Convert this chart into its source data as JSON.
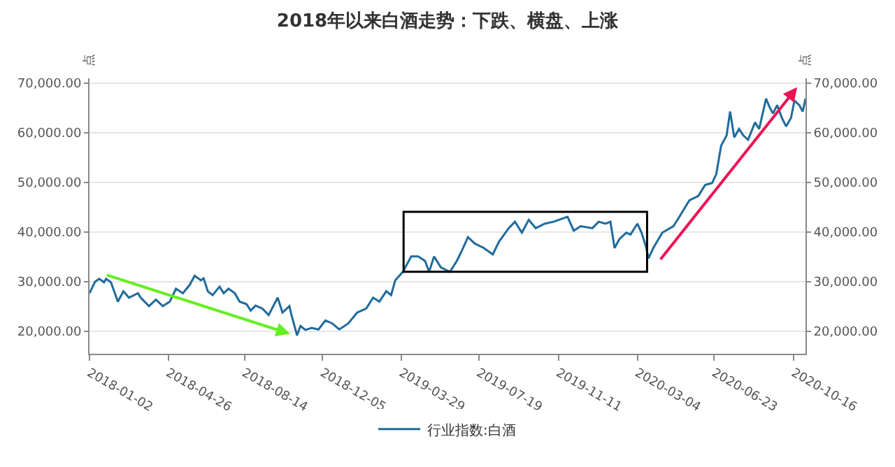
{
  "chart_data": {
    "type": "line",
    "title": "2018年以来白酒走势：下跌、横盘、上涨",
    "ylabel": "点",
    "y2label": "点",
    "x": [
      "2018-01-02",
      "2018-01-10",
      "2018-01-16",
      "2018-01-23",
      "2018-01-26",
      "2018-02-02",
      "2018-02-12",
      "2018-02-20",
      "2018-02-28",
      "2018-03-13",
      "2018-03-17",
      "2018-03-29",
      "2018-04-08",
      "2018-04-18",
      "2018-04-28",
      "2018-05-07",
      "2018-05-17",
      "2018-05-27",
      "2018-06-03",
      "2018-06-12",
      "2018-06-16",
      "2018-06-22",
      "2018-06-29",
      "2018-07-09",
      "2018-07-15",
      "2018-07-22",
      "2018-07-31",
      "2018-08-07",
      "2018-08-17",
      "2018-08-23",
      "2018-08-30",
      "2018-09-09",
      "2018-09-18",
      "2018-10-01",
      "2018-10-08",
      "2018-10-18",
      "2018-10-21",
      "2018-10-29",
      "2018-11-03",
      "2018-11-10",
      "2018-11-19",
      "2018-11-29",
      "2018-12-09",
      "2018-12-19",
      "2018-12-29",
      "2019-01-11",
      "2019-01-24",
      "2019-02-06",
      "2019-02-16",
      "2019-02-25",
      "2019-03-07",
      "2019-03-14",
      "2019-03-20",
      "2019-03-31",
      "2019-04-12",
      "2019-04-22",
      "2019-05-02",
      "2019-05-08",
      "2019-05-15",
      "2019-05-25",
      "2019-06-07",
      "2019-06-17",
      "2019-06-26",
      "2019-07-03",
      "2019-07-13",
      "2019-07-26",
      "2019-08-08",
      "2019-08-17",
      "2019-08-31",
      "2019-09-09",
      "2019-09-19",
      "2019-09-29",
      "2019-10-09",
      "2019-10-22",
      "2019-11-04",
      "2019-11-24",
      "2019-12-03",
      "2019-12-13",
      "2019-12-30",
      "2020-01-08",
      "2020-01-18",
      "2020-01-25",
      "2020-01-31",
      "2020-02-07",
      "2020-02-17",
      "2020-02-23",
      "2020-03-04",
      "2020-03-10",
      "2020-03-17",
      "2020-03-20",
      "2020-03-27",
      "2020-04-09",
      "2020-04-25",
      "2020-05-05",
      "2020-05-18",
      "2020-05-31",
      "2020-06-10",
      "2020-06-20",
      "2020-06-26",
      "2020-07-03",
      "2020-07-11",
      "2020-07-16",
      "2020-07-22",
      "2020-07-29",
      "2020-08-04",
      "2020-08-11",
      "2020-08-21",
      "2020-08-27",
      "2020-09-06",
      "2020-09-11",
      "2020-09-16",
      "2020-09-22",
      "2020-09-29",
      "2020-10-05",
      "2020-10-12",
      "2020-10-17",
      "2020-10-24",
      "2020-10-29",
      "2020-11-02"
    ],
    "series": [
      {
        "name": "行业指数:白酒",
        "color": "#1f6b9c",
        "values": [
          27700,
          30000,
          30600,
          29900,
          30600,
          29900,
          26000,
          28100,
          26800,
          27700,
          26800,
          25100,
          26400,
          25100,
          26000,
          28600,
          27700,
          29400,
          31200,
          30300,
          30700,
          28100,
          27300,
          29000,
          27700,
          28600,
          27700,
          26000,
          25500,
          24200,
          25200,
          24600,
          23300,
          26800,
          23800,
          25100,
          23300,
          19200,
          21100,
          20300,
          20700,
          20400,
          22200,
          21600,
          20400,
          21600,
          23800,
          24600,
          26800,
          26000,
          28100,
          27300,
          30300,
          32000,
          35100,
          35100,
          34200,
          32000,
          35100,
          32900,
          32000,
          34200,
          36800,
          39000,
          37700,
          36800,
          35500,
          38100,
          40800,
          42100,
          39900,
          42500,
          40800,
          41700,
          42100,
          43100,
          40300,
          41200,
          40800,
          42100,
          41700,
          42100,
          36800,
          38600,
          39900,
          39500,
          41700,
          39900,
          36800,
          34700,
          36800,
          39900,
          41200,
          43400,
          46400,
          47300,
          49500,
          49900,
          51700,
          57400,
          59500,
          64300,
          59100,
          60800,
          59500,
          58600,
          62100,
          60800,
          66900,
          65200,
          63900,
          65600,
          63000,
          61300,
          63000,
          66500,
          65600,
          64300,
          66900
        ]
      }
    ],
    "xlim": [
      "2018-01-02",
      "2020-11-02"
    ],
    "xticks": [
      "2018-01-02",
      "2018-04-26",
      "2018-08-14",
      "2018-12-05",
      "2019-03-29",
      "2019-07-19",
      "2019-11-11",
      "2020-03-04",
      "2020-06-23",
      "2020-10-16"
    ],
    "ylim": [
      15500,
      71000
    ],
    "yticks": [
      {
        "value": 20000,
        "label": "20,000.00"
      },
      {
        "value": 30000,
        "label": "30,000.00"
      },
      {
        "value": 40000,
        "label": "40,000.00"
      },
      {
        "value": 50000,
        "label": "50,000.00"
      },
      {
        "value": 60000,
        "label": "60,000.00"
      },
      {
        "value": 70000,
        "label": "70,000.00"
      }
    ],
    "y2lim": [
      15500,
      71000
    ],
    "y2ticks": [
      {
        "value": 20000,
        "label": "20,000.00"
      },
      {
        "value": 30000,
        "label": "30,000.00"
      },
      {
        "value": 40000,
        "label": "40,000.00"
      },
      {
        "value": 50000,
        "label": "50,000.00"
      },
      {
        "value": 60000,
        "label": "60,000.00"
      },
      {
        "value": 70000,
        "label": "70,000.00"
      }
    ],
    "grid": "y",
    "legend": "bottom",
    "marker": "none",
    "line_style": "solid"
  }
}
